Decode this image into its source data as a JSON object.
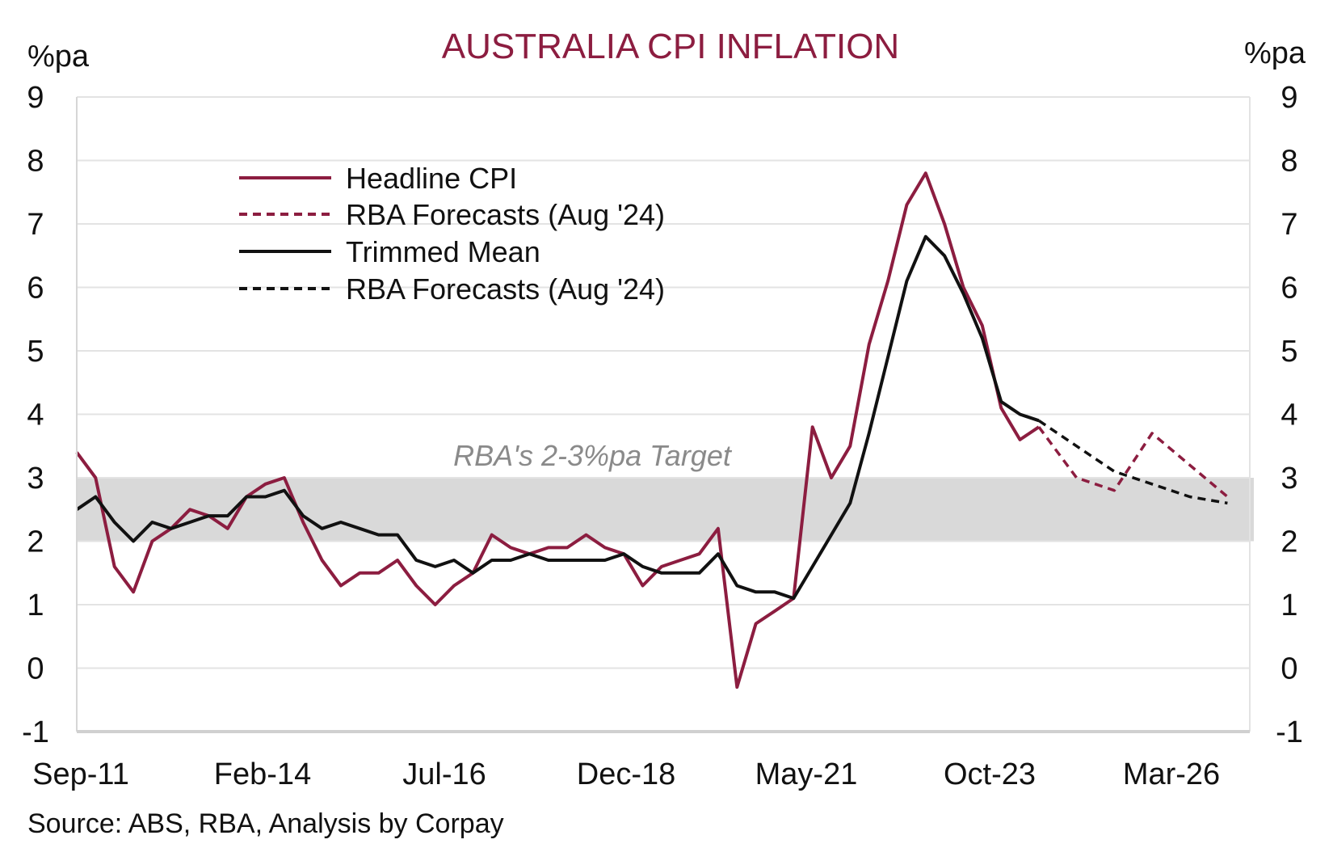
{
  "chart_data": {
    "type": "line",
    "title": "AUSTRALIA CPI INFLATION",
    "ylabel_left": "%pa",
    "ylabel_right": "%pa",
    "ylim": [
      -1,
      9
    ],
    "yticks": [
      -1,
      0,
      1,
      2,
      3,
      4,
      5,
      6,
      7,
      8,
      9
    ],
    "xtick_labels": [
      "Sep-11",
      "Feb-14",
      "Jul-16",
      "Dec-18",
      "May-21",
      "Oct-23",
      "Mar-26"
    ],
    "grid": true,
    "legend_position": "top-left",
    "target_band": {
      "label": "RBA's 2-3%pa Target",
      "low": 2,
      "high": 3
    },
    "source": "Source: ABS, RBA, Analysis by Corpay",
    "colors": {
      "headline": "#8c1d40",
      "trimmed": "#111111",
      "band": "#d9d9d9",
      "grid": "#e3e3e3"
    },
    "history_dates": [
      "Sep-11",
      "Dec-11",
      "Mar-12",
      "Jun-12",
      "Sep-12",
      "Dec-12",
      "Mar-13",
      "Jun-13",
      "Sep-13",
      "Dec-13",
      "Mar-14",
      "Jun-14",
      "Sep-14",
      "Dec-14",
      "Mar-15",
      "Jun-15",
      "Sep-15",
      "Dec-15",
      "Mar-16",
      "Jun-16",
      "Sep-16",
      "Dec-16",
      "Mar-17",
      "Jun-17",
      "Sep-17",
      "Dec-17",
      "Mar-18",
      "Jun-18",
      "Sep-18",
      "Dec-18",
      "Mar-19",
      "Jun-19",
      "Sep-19",
      "Dec-19",
      "Mar-20",
      "Jun-20",
      "Sep-20",
      "Dec-20",
      "Mar-21",
      "Jun-21",
      "Sep-21",
      "Dec-21",
      "Mar-22",
      "Jun-22",
      "Sep-22",
      "Dec-22",
      "Mar-23",
      "Jun-23",
      "Sep-23",
      "Dec-23",
      "Mar-24",
      "Jun-24"
    ],
    "forecast_dates": [
      "Jun-24",
      "Dec-24",
      "Jun-25",
      "Dec-25",
      "Jun-26",
      "Dec-26"
    ],
    "series": [
      {
        "name": "Headline CPI",
        "style": "solid",
        "color": "#8c1d40",
        "values": [
          3.4,
          3.0,
          1.6,
          1.2,
          2.0,
          2.2,
          2.5,
          2.4,
          2.2,
          2.7,
          2.9,
          3.0,
          2.3,
          1.7,
          1.3,
          1.5,
          1.5,
          1.7,
          1.3,
          1.0,
          1.3,
          1.5,
          2.1,
          1.9,
          1.8,
          1.9,
          1.9,
          2.1,
          1.9,
          1.8,
          1.3,
          1.6,
          1.7,
          1.8,
          2.2,
          -0.3,
          0.7,
          0.9,
          1.1,
          3.8,
          3.0,
          3.5,
          5.1,
          6.1,
          7.3,
          7.8,
          7.0,
          6.0,
          5.4,
          4.1,
          3.6,
          3.8
        ]
      },
      {
        "name": "RBA Forecasts (Aug '24)",
        "style": "dashed",
        "color": "#8c1d40",
        "values": [
          3.8,
          3.0,
          2.8,
          3.7,
          3.2,
          2.7
        ]
      },
      {
        "name": "Trimmed Mean",
        "style": "solid",
        "color": "#111111",
        "values": [
          2.5,
          2.7,
          2.3,
          2.0,
          2.3,
          2.2,
          2.3,
          2.4,
          2.4,
          2.7,
          2.7,
          2.8,
          2.4,
          2.2,
          2.3,
          2.2,
          2.1,
          2.1,
          1.7,
          1.6,
          1.7,
          1.5,
          1.7,
          1.7,
          1.8,
          1.7,
          1.7,
          1.7,
          1.7,
          1.8,
          1.6,
          1.5,
          1.5,
          1.5,
          1.8,
          1.3,
          1.2,
          1.2,
          1.1,
          1.6,
          2.1,
          2.6,
          3.7,
          4.9,
          6.1,
          6.8,
          6.5,
          5.9,
          5.2,
          4.2,
          4.0,
          3.9
        ]
      },
      {
        "name": "RBA Forecasts (Aug '24)",
        "style": "dashed",
        "color": "#111111",
        "values": [
          3.9,
          3.5,
          3.1,
          2.9,
          2.7,
          2.6
        ]
      }
    ]
  }
}
